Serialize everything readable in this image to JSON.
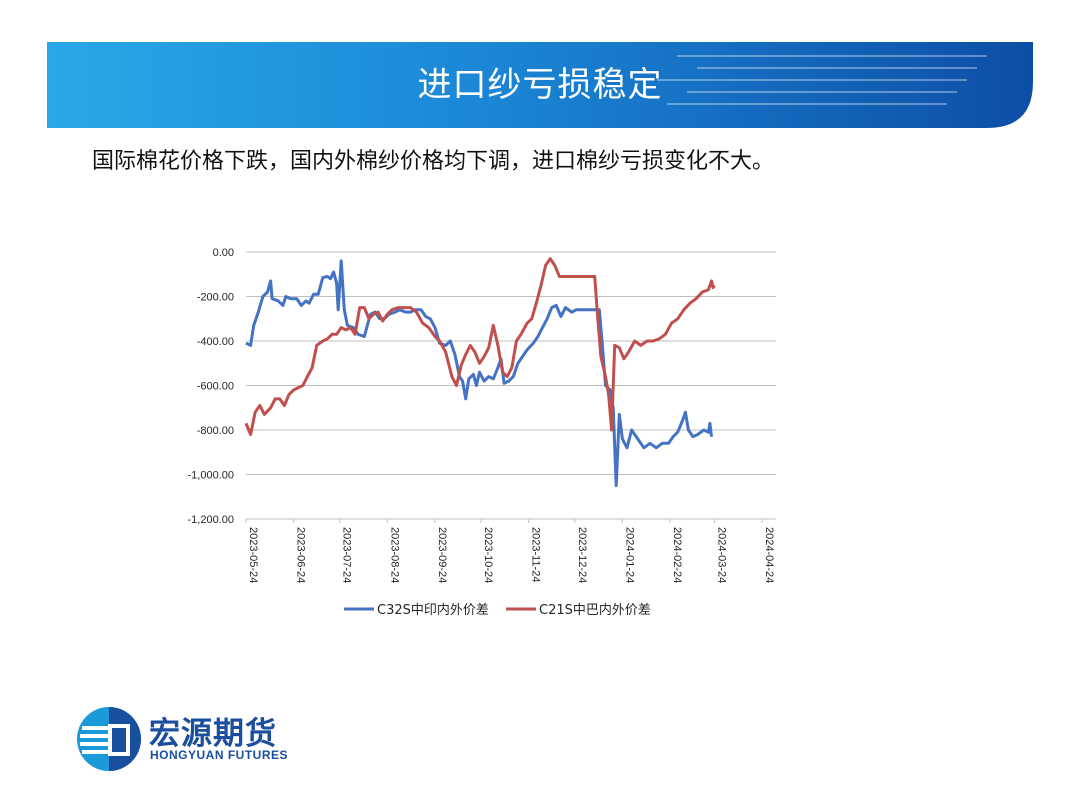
{
  "header": {
    "title": "进口纱亏损稳定"
  },
  "subtitle": "国际棉花价格下跌，国内外棉纱价格均下调，进口棉纱亏损变化不大。",
  "logo": {
    "name_cn": "宏源期货",
    "name_en": "HONGYUAN FUTURES"
  },
  "colors": {
    "banner_light": "#29a8e8",
    "banner_dark": "#0d4ea6",
    "series1": "#4472c4",
    "series2": "#c0504d"
  },
  "chart_data": {
    "type": "line",
    "title": "",
    "xlabel": "",
    "ylabel": "",
    "ylim": [
      -1200,
      0
    ],
    "yticks": [
      0,
      -200,
      -400,
      -600,
      -800,
      -1000,
      -1200
    ],
    "ytick_labels": [
      "0.00",
      "-200.00",
      "-400.00",
      "-600.00",
      "-800.00",
      "-1,000.00",
      "-1,200.00"
    ],
    "xrange": [
      "2023-05-24",
      "2024-05-03"
    ],
    "xtick_labels": [
      "2023-05-24",
      "2023-06-24",
      "2023-07-24",
      "2023-08-24",
      "2023-09-24",
      "2023-10-24",
      "2023-11-24",
      "2023-12-24",
      "2024-01-24",
      "2024-02-24",
      "2024-03-24",
      "2024-04-24"
    ],
    "grid": "horizontal",
    "legend": "bottom",
    "series": [
      {
        "name": "C32S中印内外价差",
        "color": "#4472c4",
        "points": [
          [
            "2023-05-24",
            -410
          ],
          [
            "2023-05-27",
            -420
          ],
          [
            "2023-05-29",
            -330
          ],
          [
            "2023-06-01",
            -270
          ],
          [
            "2023-06-04",
            -200
          ],
          [
            "2023-06-07",
            -180
          ],
          [
            "2023-06-09",
            -130
          ],
          [
            "2023-06-10",
            -210
          ],
          [
            "2023-06-14",
            -220
          ],
          [
            "2023-06-17",
            -240
          ],
          [
            "2023-06-19",
            -200
          ],
          [
            "2023-06-22",
            -210
          ],
          [
            "2023-06-26",
            -210
          ],
          [
            "2023-06-29",
            -240
          ],
          [
            "2023-07-02",
            -220
          ],
          [
            "2023-07-04",
            -230
          ],
          [
            "2023-07-07",
            -190
          ],
          [
            "2023-07-10",
            -190
          ],
          [
            "2023-07-13",
            -115
          ],
          [
            "2023-07-16",
            -110
          ],
          [
            "2023-07-18",
            -120
          ],
          [
            "2023-07-20",
            -90
          ],
          [
            "2023-07-22",
            -140
          ],
          [
            "2023-07-23",
            -260
          ],
          [
            "2023-07-25",
            -40
          ],
          [
            "2023-07-27",
            -260
          ],
          [
            "2023-07-29",
            -330
          ],
          [
            "2023-08-02",
            -340
          ],
          [
            "2023-08-05",
            -370
          ],
          [
            "2023-08-09",
            -380
          ],
          [
            "2023-08-13",
            -280
          ],
          [
            "2023-08-16",
            -270
          ],
          [
            "2023-08-19",
            -300
          ],
          [
            "2023-08-22",
            -300
          ],
          [
            "2023-08-25",
            -280
          ],
          [
            "2023-08-29",
            -270
          ],
          [
            "2023-09-01",
            -260
          ],
          [
            "2023-09-05",
            -270
          ],
          [
            "2023-09-08",
            -270
          ],
          [
            "2023-09-11",
            -260
          ],
          [
            "2023-09-15",
            -260
          ],
          [
            "2023-09-18",
            -290
          ],
          [
            "2023-09-21",
            -300
          ],
          [
            "2023-09-24",
            -340
          ],
          [
            "2023-09-27",
            -410
          ],
          [
            "2023-10-01",
            -420
          ],
          [
            "2023-10-04",
            -400
          ],
          [
            "2023-10-07",
            -460
          ],
          [
            "2023-10-10",
            -560
          ],
          [
            "2023-10-12",
            -580
          ],
          [
            "2023-10-14",
            -660
          ],
          [
            "2023-10-16",
            -570
          ],
          [
            "2023-10-19",
            -550
          ],
          [
            "2023-10-21",
            -600
          ],
          [
            "2023-10-23",
            -540
          ],
          [
            "2023-10-26",
            -580
          ],
          [
            "2023-10-29",
            -560
          ],
          [
            "2023-11-01",
            -570
          ],
          [
            "2023-11-04",
            -520
          ],
          [
            "2023-11-06",
            -480
          ],
          [
            "2023-11-08",
            -590
          ],
          [
            "2023-11-11",
            -580
          ],
          [
            "2023-11-14",
            -560
          ],
          [
            "2023-11-17",
            -500
          ],
          [
            "2023-11-20",
            -470
          ],
          [
            "2023-11-23",
            -440
          ],
          [
            "2023-11-27",
            -410
          ],
          [
            "2023-11-30",
            -380
          ],
          [
            "2023-12-03",
            -340
          ],
          [
            "2023-12-06",
            -300
          ],
          [
            "2023-12-09",
            -250
          ],
          [
            "2023-12-12",
            -240
          ],
          [
            "2023-12-15",
            -290
          ],
          [
            "2023-12-18",
            -250
          ],
          [
            "2023-12-22",
            -270
          ],
          [
            "2023-12-25",
            -260
          ],
          [
            "2023-12-29",
            -260
          ],
          [
            "2024-01-02",
            -260
          ],
          [
            "2024-01-06",
            -260
          ],
          [
            "2024-01-09",
            -260
          ],
          [
            "2024-01-11",
            -420
          ],
          [
            "2024-01-13",
            -600
          ],
          [
            "2024-01-16",
            -620
          ],
          [
            "2024-01-18",
            -700
          ],
          [
            "2024-01-20",
            -1050
          ],
          [
            "2024-01-22",
            -730
          ],
          [
            "2024-01-24",
            -840
          ],
          [
            "2024-01-27",
            -880
          ],
          [
            "2024-01-30",
            -800
          ],
          [
            "2024-02-03",
            -840
          ],
          [
            "2024-02-07",
            -880
          ],
          [
            "2024-02-11",
            -860
          ],
          [
            "2024-02-15",
            -880
          ],
          [
            "2024-02-19",
            -860
          ],
          [
            "2024-02-23",
            -860
          ],
          [
            "2024-02-26",
            -830
          ],
          [
            "2024-02-29",
            -810
          ],
          [
            "2024-03-03",
            -760
          ],
          [
            "2024-03-05",
            -720
          ],
          [
            "2024-03-07",
            -800
          ],
          [
            "2024-03-10",
            -830
          ],
          [
            "2024-03-13",
            -820
          ],
          [
            "2024-03-17",
            -800
          ],
          [
            "2024-03-20",
            -810
          ],
          [
            "2024-03-21",
            -770
          ],
          [
            "2024-03-22",
            -830
          ]
        ]
      },
      {
        "name": "C21S中巴内外价差",
        "color": "#c0504d",
        "points": [
          [
            "2023-05-24",
            -770
          ],
          [
            "2023-05-27",
            -820
          ],
          [
            "2023-05-30",
            -720
          ],
          [
            "2023-06-02",
            -690
          ],
          [
            "2023-06-05",
            -730
          ],
          [
            "2023-06-09",
            -700
          ],
          [
            "2023-06-12",
            -660
          ],
          [
            "2023-06-15",
            -660
          ],
          [
            "2023-06-18",
            -690
          ],
          [
            "2023-06-21",
            -640
          ],
          [
            "2023-06-24",
            -620
          ],
          [
            "2023-06-27",
            -610
          ],
          [
            "2023-06-30",
            -600
          ],
          [
            "2023-07-03",
            -560
          ],
          [
            "2023-07-06",
            -520
          ],
          [
            "2023-07-09",
            -420
          ],
          [
            "2023-07-13",
            -400
          ],
          [
            "2023-07-16",
            -390
          ],
          [
            "2023-07-19",
            -370
          ],
          [
            "2023-07-22",
            -370
          ],
          [
            "2023-07-25",
            -340
          ],
          [
            "2023-07-28",
            -350
          ],
          [
            "2023-07-31",
            -340
          ],
          [
            "2023-08-03",
            -370
          ],
          [
            "2023-08-06",
            -250
          ],
          [
            "2023-08-09",
            -250
          ],
          [
            "2023-08-12",
            -300
          ],
          [
            "2023-08-15",
            -280
          ],
          [
            "2023-08-18",
            -270
          ],
          [
            "2023-08-21",
            -310
          ],
          [
            "2023-08-24",
            -280
          ],
          [
            "2023-08-27",
            -260
          ],
          [
            "2023-08-31",
            -250
          ],
          [
            "2023-09-04",
            -250
          ],
          [
            "2023-09-08",
            -250
          ],
          [
            "2023-09-12",
            -270
          ],
          [
            "2023-09-16",
            -320
          ],
          [
            "2023-09-20",
            -340
          ],
          [
            "2023-09-24",
            -380
          ],
          [
            "2023-09-27",
            -400
          ],
          [
            "2023-10-01",
            -450
          ],
          [
            "2023-10-05",
            -560
          ],
          [
            "2023-10-08",
            -600
          ],
          [
            "2023-10-11",
            -510
          ],
          [
            "2023-10-14",
            -460
          ],
          [
            "2023-10-17",
            -420
          ],
          [
            "2023-10-20",
            -450
          ],
          [
            "2023-10-23",
            -500
          ],
          [
            "2023-10-26",
            -470
          ],
          [
            "2023-10-29",
            -430
          ],
          [
            "2023-11-01",
            -330
          ],
          [
            "2023-11-04",
            -420
          ],
          [
            "2023-11-07",
            -540
          ],
          [
            "2023-11-10",
            -560
          ],
          [
            "2023-11-13",
            -520
          ],
          [
            "2023-11-16",
            -400
          ],
          [
            "2023-11-19",
            -370
          ],
          [
            "2023-11-23",
            -320
          ],
          [
            "2023-11-26",
            -300
          ],
          [
            "2023-11-29",
            -230
          ],
          [
            "2023-12-02",
            -150
          ],
          [
            "2023-12-05",
            -60
          ],
          [
            "2023-12-08",
            -30
          ],
          [
            "2023-12-11",
            -60
          ],
          [
            "2023-12-14",
            -110
          ],
          [
            "2023-12-18",
            -110
          ],
          [
            "2023-12-22",
            -110
          ],
          [
            "2023-12-26",
            -110
          ],
          [
            "2023-12-30",
            -110
          ],
          [
            "2024-01-03",
            -110
          ],
          [
            "2024-01-06",
            -110
          ],
          [
            "2024-01-08",
            -300
          ],
          [
            "2024-01-10",
            -470
          ],
          [
            "2024-01-13",
            -560
          ],
          [
            "2024-01-15",
            -640
          ],
          [
            "2024-01-17",
            -800
          ],
          [
            "2024-01-19",
            -420
          ],
          [
            "2024-01-22",
            -430
          ],
          [
            "2024-01-25",
            -480
          ],
          [
            "2024-01-28",
            -450
          ],
          [
            "2024-02-01",
            -400
          ],
          [
            "2024-02-05",
            -420
          ],
          [
            "2024-02-09",
            -400
          ],
          [
            "2024-02-13",
            -400
          ],
          [
            "2024-02-17",
            -390
          ],
          [
            "2024-02-21",
            -370
          ],
          [
            "2024-02-25",
            -320
          ],
          [
            "2024-02-29",
            -300
          ],
          [
            "2024-03-04",
            -260
          ],
          [
            "2024-03-08",
            -230
          ],
          [
            "2024-03-12",
            -210
          ],
          [
            "2024-03-16",
            -180
          ],
          [
            "2024-03-20",
            -170
          ],
          [
            "2024-03-22",
            -130
          ],
          [
            "2024-03-23",
            -160
          ],
          [
            "2024-03-24",
            -150
          ]
        ]
      }
    ]
  }
}
